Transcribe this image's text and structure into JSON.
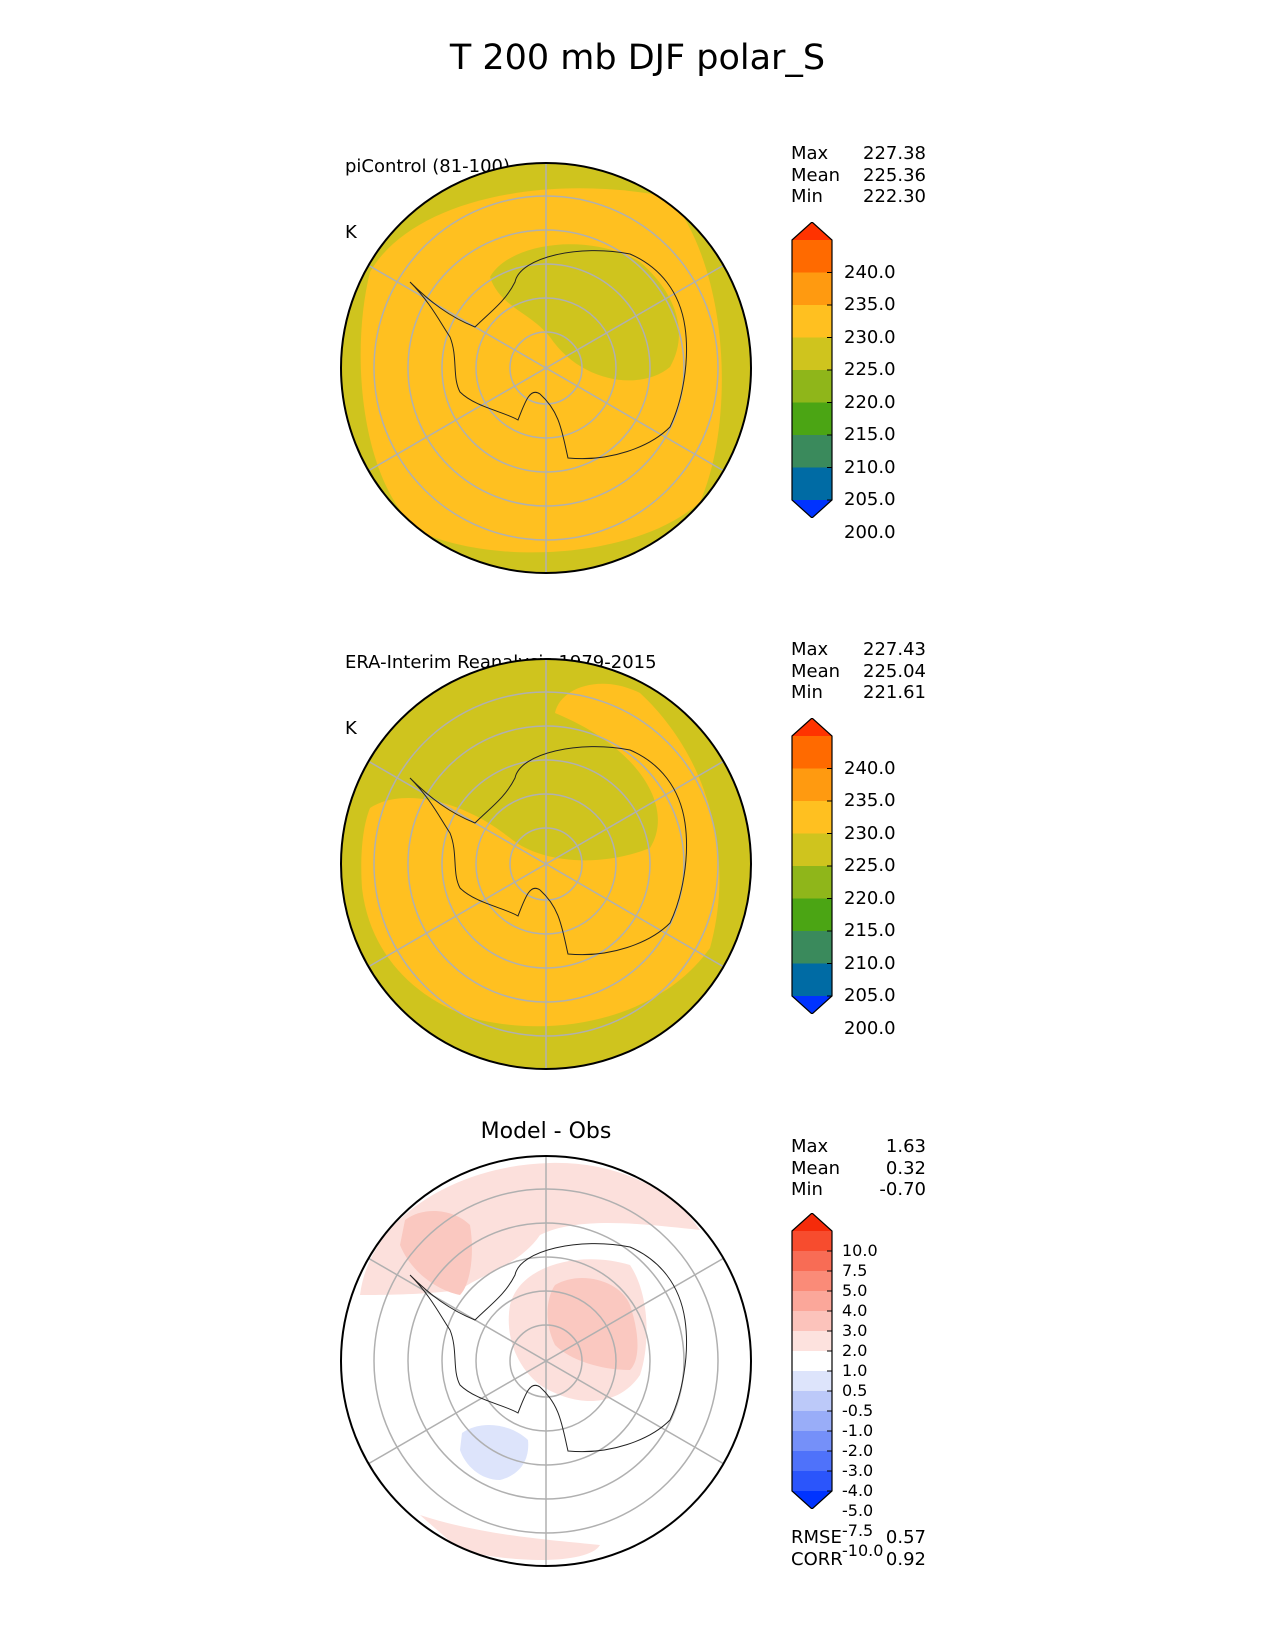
{
  "title": "T 200 mb DJF polar_S",
  "colors": {
    "absolute_levels": [
      "#0033ff",
      "#006ba4",
      "#3a8a5c",
      "#4ba514",
      "#8fb61a",
      "#cfc41e",
      "#ffc020",
      "#ff9a10",
      "#ff6a00",
      "#ff3300"
    ],
    "diff_levels": [
      "#0033ff",
      "#2b55fb",
      "#4f72fa",
      "#7590f9",
      "#99adf8",
      "#bcc9f9",
      "#dde4fb",
      "#ffffff",
      "#fde2de",
      "#fcc3bb",
      "#fba79a",
      "#fa8b78",
      "#f86c55",
      "#f74c2e",
      "#f52b0a"
    ],
    "model_field": "#ffc020",
    "obs_field": "#cfc41e",
    "diff_warm": "#fce0dc",
    "diff_warm2": "#fac8c0",
    "diff_cool": "#dde4fb",
    "grid": "#b0b0b0",
    "coast": "#222222"
  },
  "panels": [
    {
      "label_line1": "piControl (81-100)",
      "label_line2": "K",
      "stats": {
        "max_label": "Max",
        "max": "227.38",
        "mean_label": "Mean",
        "mean": "225.36",
        "min_label": "Min",
        "min": "222.30"
      }
    },
    {
      "label_line1": "ERA-Interim Reanalysis 1979-2015",
      "label_line2": "K",
      "stats": {
        "max_label": "Max",
        "max": "227.43",
        "mean_label": "Mean",
        "mean": "225.04",
        "min_label": "Min",
        "min": "221.61"
      }
    },
    {
      "title": "Model - Obs",
      "stats": {
        "max_label": "Max",
        "max": "1.63",
        "mean_label": "Mean",
        "mean": "0.32",
        "min_label": "Min",
        "min": "-0.70"
      },
      "metrics": {
        "rmse_label": "RMSE",
        "rmse": "0.57",
        "corr_label": "CORR",
        "corr": "0.92"
      }
    }
  ],
  "colorbar_abs_ticks": [
    "240.0",
    "235.0",
    "230.0",
    "225.0",
    "220.0",
    "215.0",
    "210.0",
    "205.0",
    "200.0"
  ],
  "colorbar_diff_ticks": [
    "10.0",
    "7.5",
    "5.0",
    "4.0",
    "3.0",
    "2.0",
    "1.0",
    "0.5",
    "-0.5",
    "-1.0",
    "-2.0",
    "-3.0",
    "-4.0",
    "-5.0",
    "-7.5",
    "-10.0"
  ],
  "chart_data": [
    {
      "type": "heatmap",
      "title": "piControl (81-100)",
      "projection": "south polar stereographic",
      "variable": "T 200 mb DJF",
      "units": "K",
      "levels": [
        200,
        205,
        210,
        215,
        220,
        225,
        230,
        235,
        240
      ],
      "extend": "both",
      "max": 227.38,
      "mean": 225.36,
      "min": 222.3
    },
    {
      "type": "heatmap",
      "title": "ERA-Interim Reanalysis 1979-2015",
      "projection": "south polar stereographic",
      "units": "K",
      "levels": [
        200,
        205,
        210,
        215,
        220,
        225,
        230,
        235,
        240
      ],
      "extend": "both",
      "max": 227.43,
      "mean": 225.04,
      "min": 221.61
    },
    {
      "type": "heatmap",
      "title": "Model - Obs",
      "projection": "south polar stereographic",
      "units": "K",
      "levels": [
        -10.0,
        -7.5,
        -5.0,
        -4.0,
        -3.0,
        -2.0,
        -1.0,
        -0.5,
        0.5,
        1.0,
        2.0,
        3.0,
        4.0,
        5.0,
        7.5,
        10.0
      ],
      "extend": "both",
      "max": 1.63,
      "mean": 0.32,
      "min": -0.7,
      "rmse": 0.57,
      "corr": 0.92
    }
  ]
}
